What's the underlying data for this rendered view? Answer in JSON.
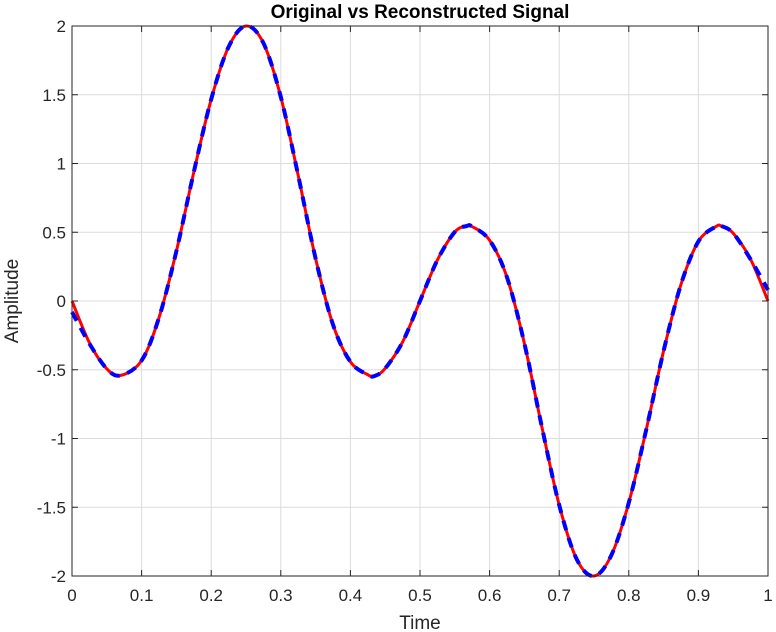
{
  "chart_data": {
    "type": "line",
    "title": "Original vs Reconstructed Signal",
    "xlabel": "Time",
    "ylabel": "Amplitude",
    "xlim": [
      0,
      1
    ],
    "ylim": [
      -2,
      2
    ],
    "xticks": [
      "0",
      "0.1",
      "0.2",
      "0.3",
      "0.4",
      "0.5",
      "0.6",
      "0.7",
      "0.8",
      "0.9",
      "1"
    ],
    "yticks": [
      "2",
      "1.5",
      "1",
      "0.5",
      "0",
      "-0.5",
      "-1",
      "-1.5",
      "-2"
    ],
    "grid": true,
    "legend": "none",
    "series": [
      {
        "color": "#ff0000",
        "style": "solid",
        "x": [
          0,
          0.025,
          0.05,
          0.07,
          0.1,
          0.125,
          0.15,
          0.175,
          0.2,
          0.225,
          0.25,
          0.275,
          0.3,
          0.325,
          0.35,
          0.375,
          0.4,
          0.425,
          0.435,
          0.45,
          0.475,
          0.5,
          0.525,
          0.55,
          0.567,
          0.575,
          0.6,
          0.625,
          0.65,
          0.675,
          0.7,
          0.725,
          0.75,
          0.775,
          0.8,
          0.825,
          0.85,
          0.875,
          0.9,
          0.925,
          0.933,
          0.95,
          0.975,
          1
        ],
        "y": [
          0,
          -0.303,
          -0.493,
          -0.541,
          -0.433,
          -0.121,
          0.363,
          0.937,
          1.467,
          1.848,
          2.0,
          1.876,
          1.484,
          0.913,
          0.309,
          -0.172,
          -0.442,
          -0.536,
          -0.545,
          -0.49,
          -0.298,
          0.0,
          0.298,
          0.502,
          0.545,
          0.541,
          0.442,
          0.172,
          -0.309,
          -0.913,
          -1.484,
          -1.876,
          -2.0,
          -1.848,
          -1.467,
          -0.937,
          -0.363,
          0.121,
          0.433,
          0.541,
          0.545,
          0.493,
          0.303,
          0
        ]
      },
      {
        "color": "#0000ff",
        "style": "dashed",
        "x": [
          0,
          0.025,
          0.05,
          0.07,
          0.1,
          0.125,
          0.15,
          0.175,
          0.2,
          0.225,
          0.25,
          0.275,
          0.3,
          0.325,
          0.35,
          0.375,
          0.4,
          0.425,
          0.435,
          0.45,
          0.475,
          0.5,
          0.525,
          0.55,
          0.567,
          0.575,
          0.6,
          0.625,
          0.65,
          0.675,
          0.7,
          0.725,
          0.75,
          0.775,
          0.8,
          0.825,
          0.85,
          0.875,
          0.9,
          0.925,
          0.933,
          0.95,
          0.975,
          1
        ],
        "y": [
          -0.08,
          -0.31,
          -0.493,
          -0.541,
          -0.433,
          -0.121,
          0.363,
          0.937,
          1.467,
          1.848,
          2.0,
          1.876,
          1.484,
          0.913,
          0.309,
          -0.172,
          -0.442,
          -0.536,
          -0.545,
          -0.49,
          -0.298,
          0.0,
          0.298,
          0.502,
          0.545,
          0.541,
          0.442,
          0.172,
          -0.309,
          -0.913,
          -1.484,
          -1.876,
          -2.0,
          -1.848,
          -1.467,
          -0.937,
          -0.363,
          0.121,
          0.433,
          0.541,
          0.545,
          0.493,
          0.303,
          0.08
        ]
      }
    ]
  }
}
